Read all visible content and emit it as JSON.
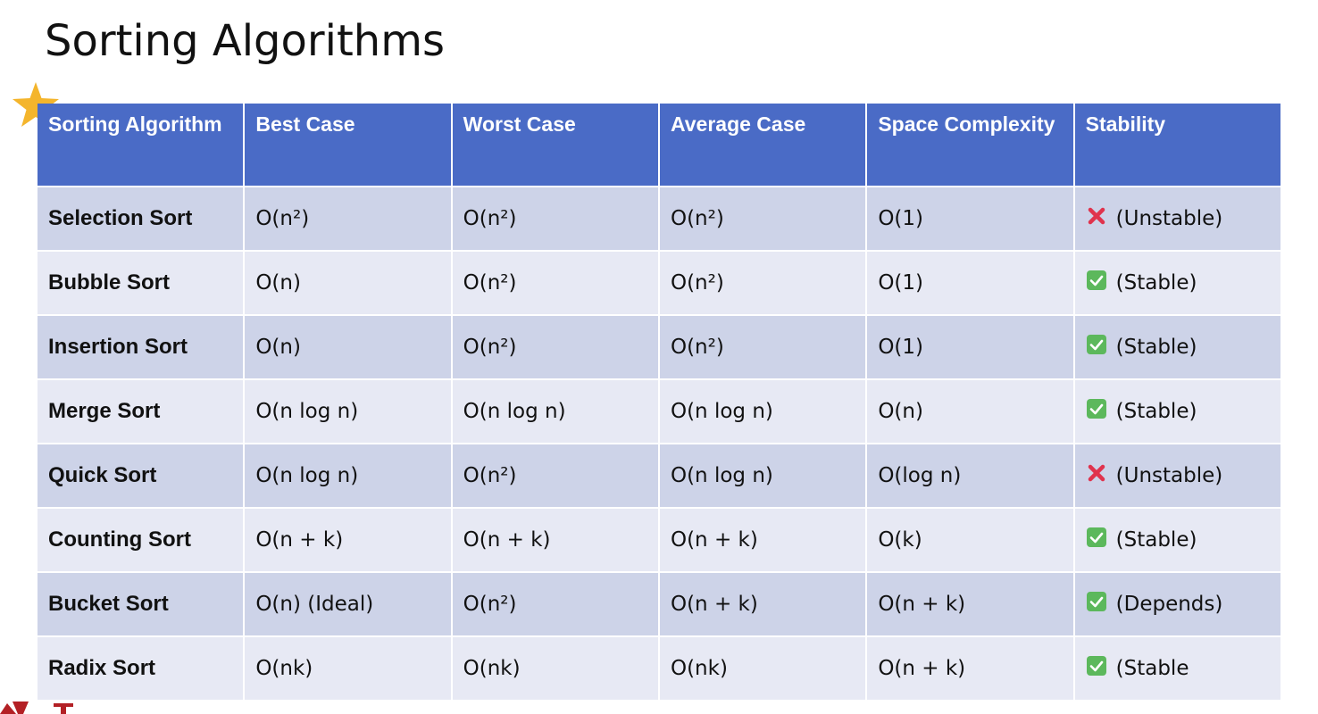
{
  "title": "Sorting Algorithms",
  "headers": [
    "Sorting Algorithm",
    "Best Case",
    "Worst Case",
    "Average Case",
    "Space Complexity",
    "Stability"
  ],
  "rows": [
    {
      "name": "Selection Sort",
      "best": "O(n²)",
      "worst": "O(n²)",
      "avg": "O(n²)",
      "space": "O(1)",
      "stable": false,
      "stability": "(Unstable)"
    },
    {
      "name": "Bubble Sort",
      "best": "O(n)",
      "worst": "O(n²)",
      "avg": "O(n²)",
      "space": "O(1)",
      "stable": true,
      "stability": "(Stable)"
    },
    {
      "name": "Insertion Sort",
      "best": "O(n)",
      "worst": "O(n²)",
      "avg": "O(n²)",
      "space": "O(1)",
      "stable": true,
      "stability": "(Stable)"
    },
    {
      "name": "Merge Sort",
      "best": "O(n log n)",
      "worst": "O(n log n)",
      "avg": "O(n log n)",
      "space": "O(n)",
      "stable": true,
      "stability": "(Stable)"
    },
    {
      "name": "Quick Sort",
      "best": "O(n log n)",
      "worst": "O(n²)",
      "avg": "O(n log n)",
      "space": "O(log n)",
      "stable": false,
      "stability": "(Unstable)"
    },
    {
      "name": "Counting Sort",
      "best": "O(n + k)",
      "worst": "O(n + k)",
      "avg": "O(n + k)",
      "space": "O(k)",
      "stable": true,
      "stability": "(Stable)"
    },
    {
      "name": "Bucket Sort",
      "best": "O(n) (Ideal)",
      "worst": "O(n²)",
      "avg": "O(n + k)",
      "space": "O(n + k)",
      "stable": true,
      "stability": "(Depends)"
    },
    {
      "name": "Radix Sort",
      "best": "O(nk)",
      "worst": "O(nk)",
      "avg": "O(nk)",
      "space": "O(n + k)",
      "stable": true,
      "stability": "(Stable"
    }
  ],
  "icons": {
    "decoration": "star-icon",
    "stable": "check-box-icon",
    "unstable": "cross-mark-icon"
  },
  "colors": {
    "header": "#4a6bc6",
    "row_dark": "#cdd3e8",
    "row_light": "#e7e9f4",
    "star": "#f4b52c",
    "check": "#5cb85c",
    "cross": "#e0334d"
  }
}
